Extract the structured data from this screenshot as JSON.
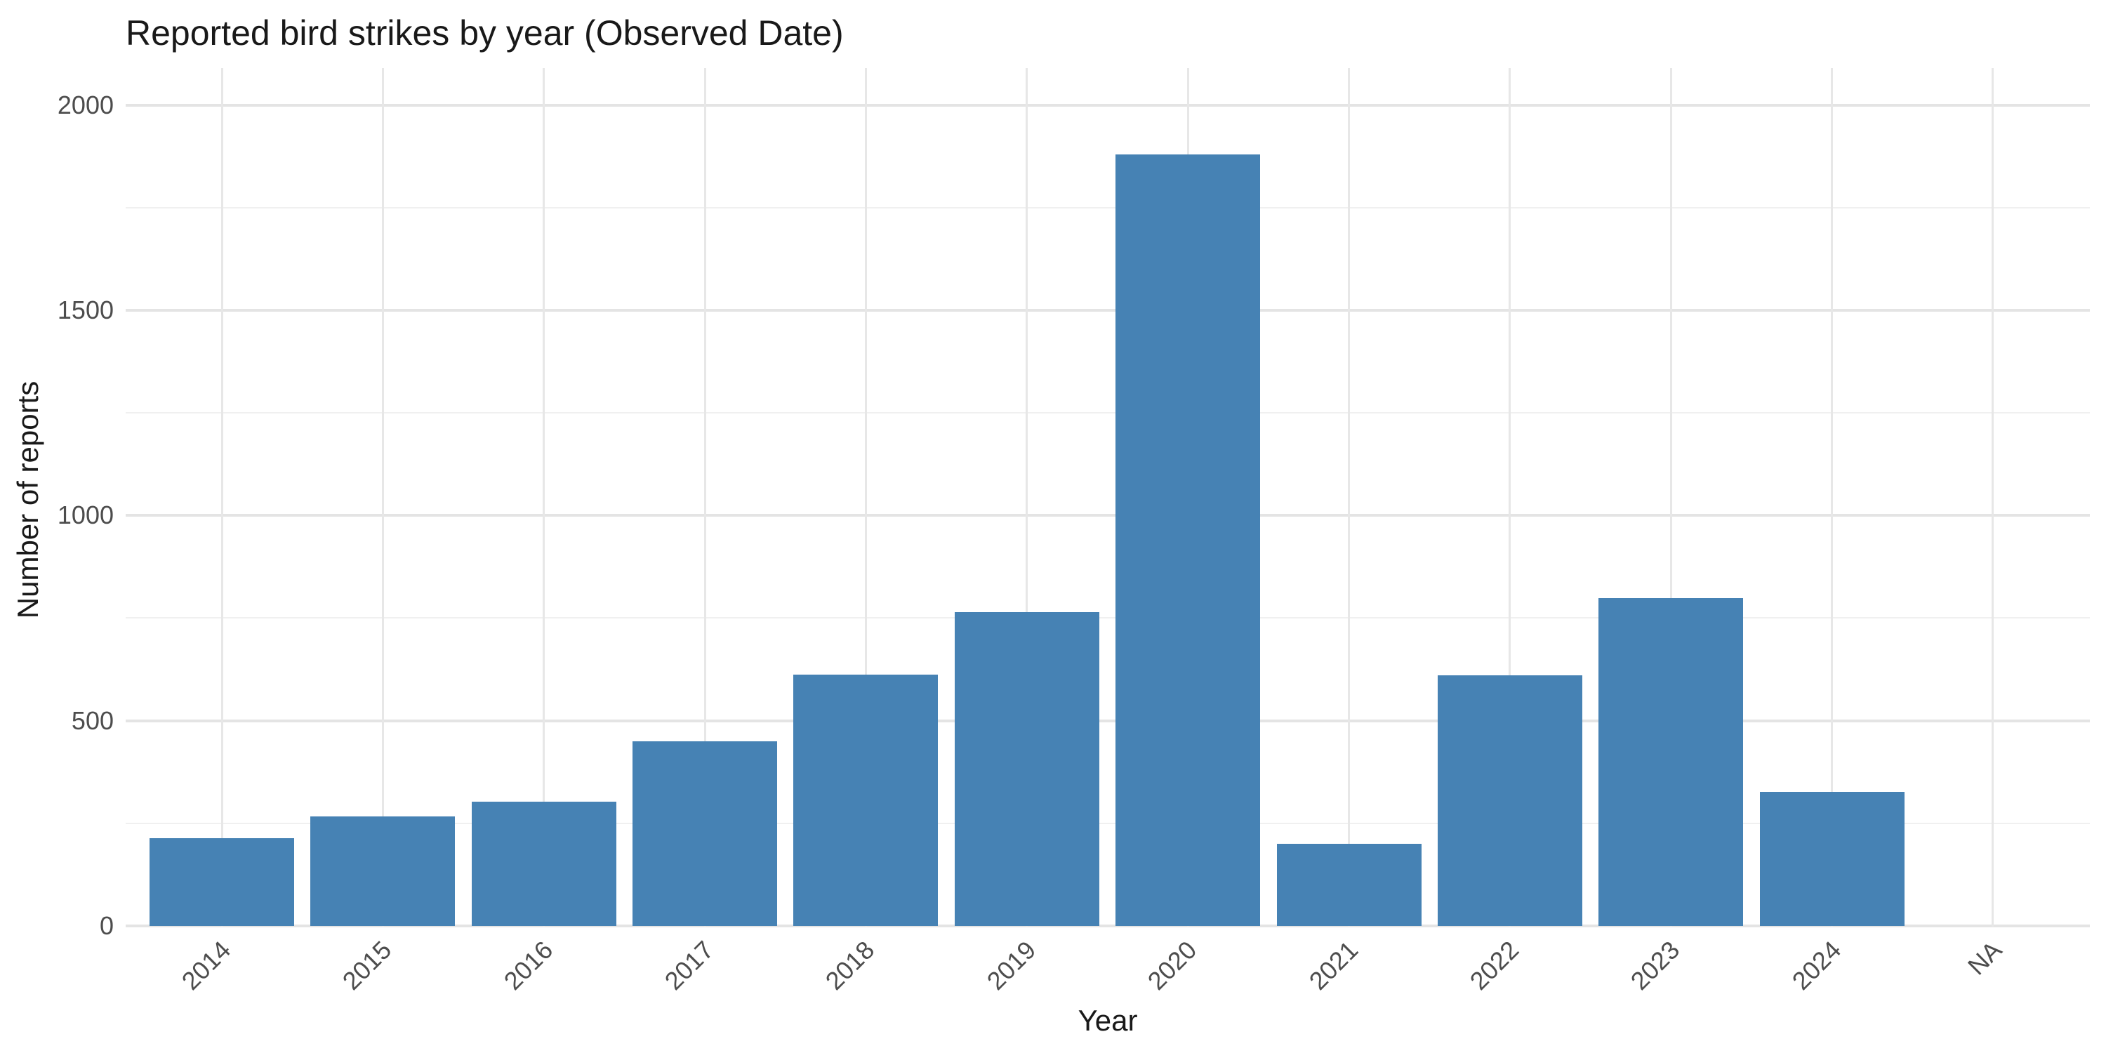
{
  "chart_data": {
    "type": "bar",
    "title": "Reported bird strikes by year (Observed Date)",
    "xlabel": "Year",
    "ylabel": "Number of reports",
    "categories": [
      "2014",
      "2015",
      "2016",
      "2017",
      "2018",
      "2019",
      "2020",
      "2021",
      "2022",
      "2023",
      "2024",
      "NA"
    ],
    "values": [
      214,
      267,
      303,
      449,
      613,
      765,
      1880,
      200,
      610,
      798,
      327,
      0
    ],
    "yticks": [
      0,
      500,
      1000,
      1500,
      2000
    ],
    "minor_yticks": [
      250,
      750,
      1250,
      1750
    ],
    "ylim": [
      0,
      2090
    ],
    "grid": "on",
    "legend": "none",
    "bar_color": "#4682B4",
    "major_grid_color": "#e4e4e4",
    "minor_grid_color": "#f0f0f0",
    "tick_label_color": "#4d4d4d",
    "text_color": "#191919",
    "background_color": "#ffffff"
  }
}
